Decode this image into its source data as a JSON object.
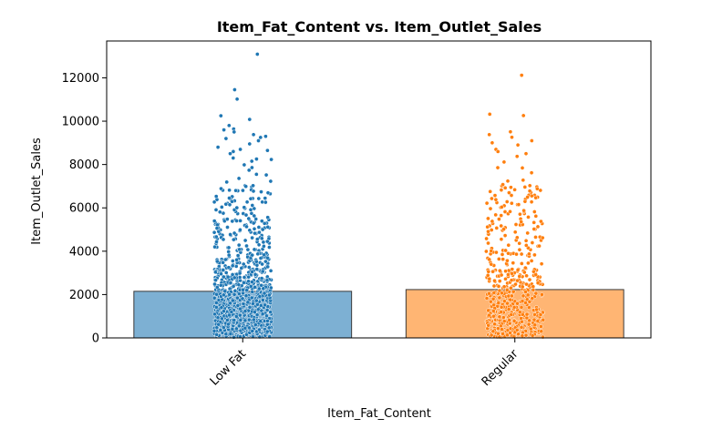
{
  "chart_data": {
    "type": "bar",
    "title": "Item_Fat_Content vs. Item_Outlet_Sales",
    "xlabel": "Item_Fat_Content",
    "ylabel": "Item_Outlet_Sales",
    "categories": [
      "Low Fat",
      "Regular"
    ],
    "values": [
      2150,
      2230
    ],
    "ylim": [
      0,
      13700
    ],
    "yticks": [
      0,
      2000,
      4000,
      6000,
      8000,
      10000,
      12000
    ],
    "ytick_labels": [
      "0",
      "2000",
      "4000",
      "6000",
      "8000",
      "10000",
      "12000"
    ],
    "grid": false,
    "overlay": "strip plot of individual sales values per category",
    "colors": {
      "Low Fat": "#1f77b4",
      "Regular": "#ff7f0e"
    },
    "outliers": {
      "Low Fat": [
        13090,
        11450,
        11020,
        10250,
        10080,
        9800,
        9640,
        9600,
        9500,
        9380,
        9300,
        9250,
        9200,
        9100,
        8950,
        8800,
        8700,
        8650,
        8600,
        8500
      ],
      "Regular": [
        12120,
        10320,
        10260,
        9510,
        9380,
        9260,
        9100,
        9000,
        8900,
        8700,
        8600,
        8500
      ]
    }
  }
}
